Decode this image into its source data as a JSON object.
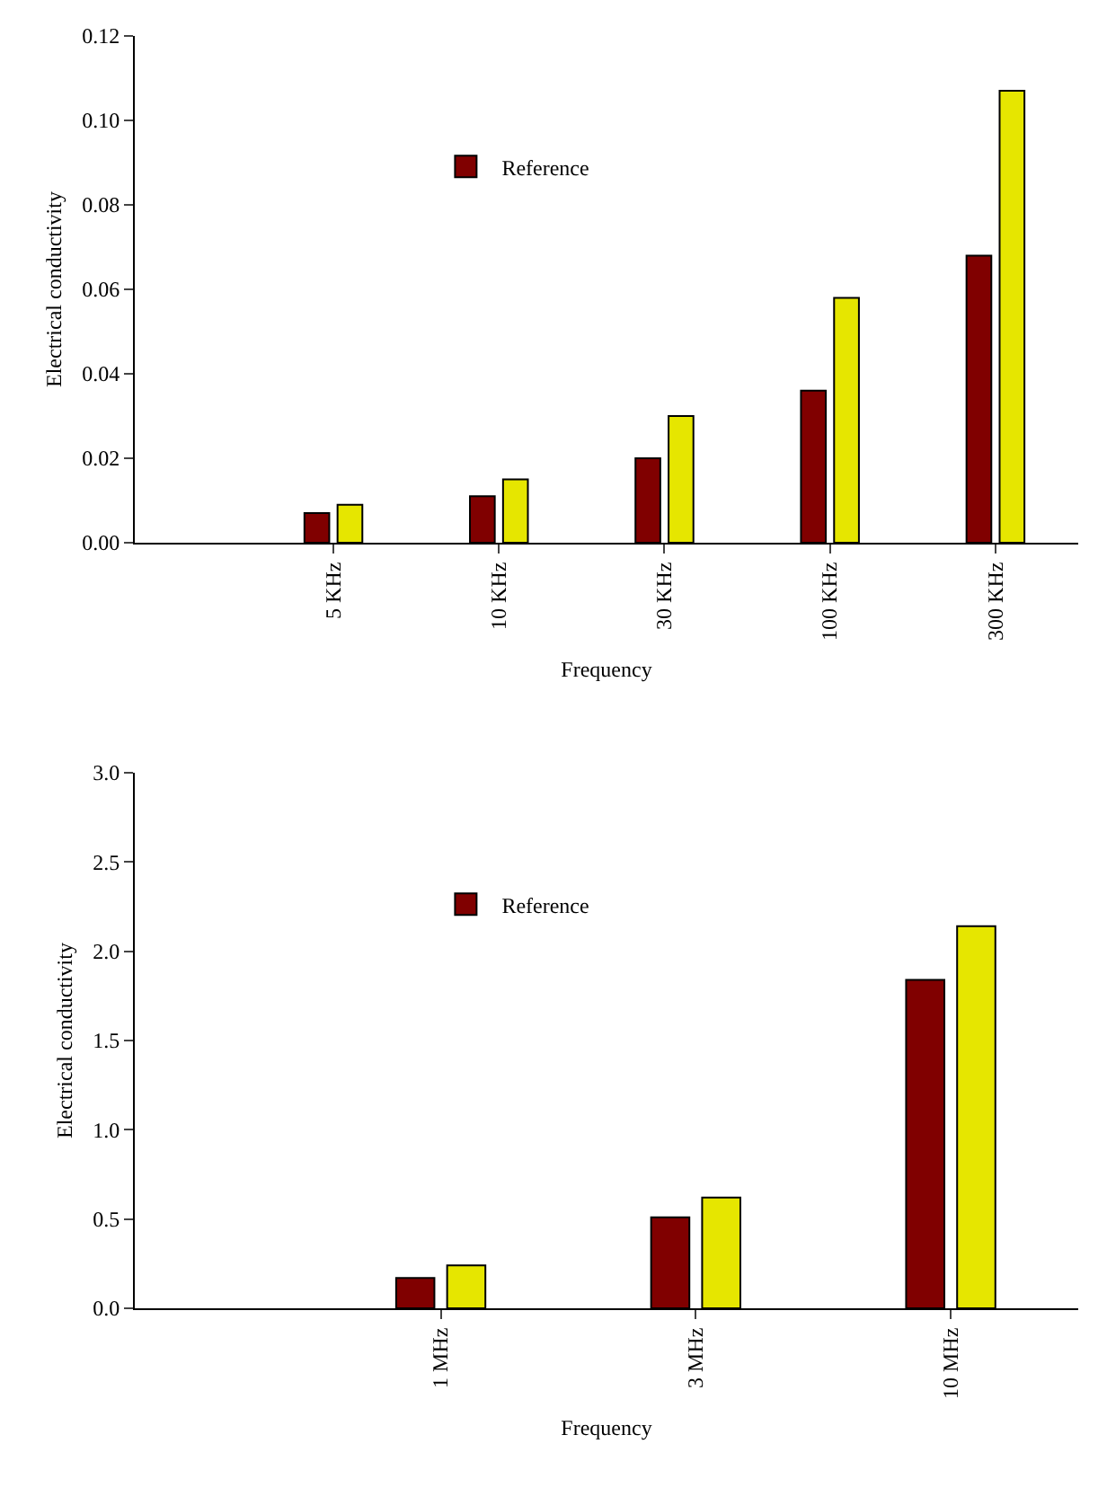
{
  "chart_data": [
    {
      "type": "bar",
      "xlabel": "Frequency",
      "ylabel": "Electrical conductivity",
      "categories": [
        "5 KHz",
        "10 KHz",
        "30 KHz",
        "100 KHz",
        "300 KHz"
      ],
      "series": [
        {
          "name": "Reference",
          "color": "#800000",
          "values": [
            0.007,
            0.011,
            0.02,
            0.036,
            0.068
          ]
        },
        {
          "color": "#e6e600",
          "values": [
            0.009,
            0.015,
            0.03,
            0.058,
            0.107
          ]
        }
      ],
      "ylim": [
        0,
        0.12
      ],
      "yticks": [
        {
          "value": 0,
          "label": "0.00"
        },
        {
          "value": 0.02,
          "label": "0.02"
        },
        {
          "value": 0.04,
          "label": "0.04"
        },
        {
          "value": 0.06,
          "label": "0.06"
        },
        {
          "value": 0.08,
          "label": "0.08"
        },
        {
          "value": 0.1,
          "label": "0.10"
        },
        {
          "value": 0.12,
          "label": "0.12"
        }
      ],
      "legend": "top left"
    },
    {
      "type": "bar",
      "xlabel": "Frequency",
      "ylabel": "Electrical conductivity",
      "categories": [
        "1 MHz",
        "3 MHz",
        "10 MHz"
      ],
      "series": [
        {
          "name": "Reference",
          "color": "#800000",
          "values": [
            0.17,
            0.51,
            1.84
          ]
        },
        {
          "color": "#e6e600",
          "values": [
            0.24,
            0.62,
            2.14
          ]
        }
      ],
      "ylim": [
        0,
        3.0
      ],
      "yticks": [
        {
          "value": 0,
          "label": "0.0"
        },
        {
          "value": 0.5,
          "label": "0.5"
        },
        {
          "value": 1.0,
          "label": "1.0"
        },
        {
          "value": 1.5,
          "label": "1.5"
        },
        {
          "value": 2.0,
          "label": "2.0"
        },
        {
          "value": 2.5,
          "label": "2.5"
        },
        {
          "value": 3.0,
          "label": "3.0"
        }
      ],
      "legend": "top left"
    }
  ]
}
